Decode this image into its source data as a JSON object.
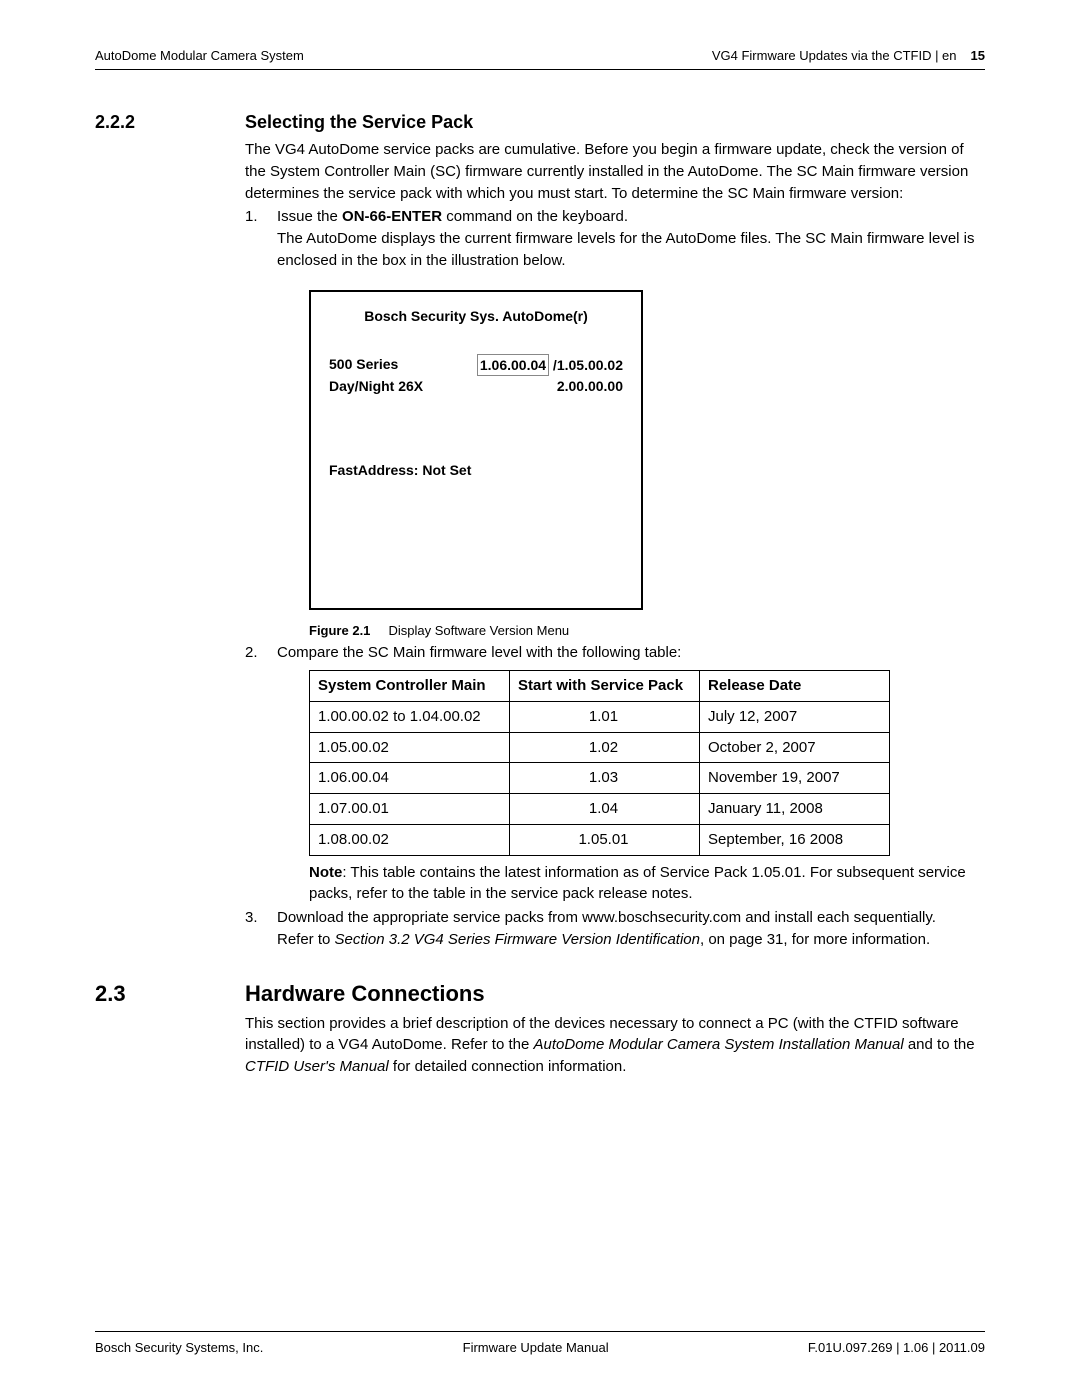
{
  "header": {
    "left": "AutoDome Modular Camera System",
    "right_title": "VG4 Firmware Updates via the CTFID | en",
    "page_number": "15"
  },
  "section_222": {
    "number": "2.2.2",
    "title": "Selecting the Service Pack",
    "intro": "The VG4 AutoDome service packs are cumulative. Before you begin a firmware update, check the version of the System Controller Main (SC) firmware currently installed in the AutoDome. The SC Main firmware version determines the service pack with which you must start. To determine the SC Main firmware version:",
    "step1_pre": "Issue the ",
    "step1_cmd": "ON-66-ENTER",
    "step1_post": " command on the keyboard.",
    "step1_line2": "The AutoDome displays the current firmware levels for the AutoDome files. The SC Main firmware level is enclosed in the box in the illustration below.",
    "display": {
      "title": "Bosch Security Sys. AutoDome(r)",
      "series_label": "500 Series",
      "ver_highlight": "1.06.00.04",
      "ver_sep": " /",
      "ver_right": "1.05.00.02",
      "dn_label": "Day/Night 26X",
      "dn_ver": "2.00.00.00",
      "fastaddr": "FastAddress:  Not Set"
    },
    "figure_label": "Figure  2.1",
    "figure_caption": "Display Software Version Menu",
    "step2": "Compare the SC Main firmware level with the following table:",
    "table": {
      "columns": [
        "System Controller Main",
        "Start with Service Pack",
        "Release Date"
      ],
      "rows": [
        [
          "1.00.00.02 to 1.04.00.02",
          "1.01",
          "July 12, 2007"
        ],
        [
          "1.05.00.02",
          "1.02",
          "October 2, 2007"
        ],
        [
          "1.06.00.04",
          "1.03",
          "November 19, 2007"
        ],
        [
          "1.07.00.01",
          "1.04",
          "January 11, 2008"
        ],
        [
          "1.08.00.02",
          "1.05.01",
          "September, 16 2008"
        ]
      ],
      "col_align": [
        "left",
        "center",
        "left"
      ]
    },
    "note_label": "Note",
    "note_text": ": This table contains the latest information as of Service Pack 1.05.01. For subsequent service packs, refer to the table in the service pack release notes.",
    "step3_a": "Download the appropriate service packs from www.boschsecurity.com and install each sequentially.",
    "step3_b_pre": "Refer to ",
    "step3_b_italic": "Section 3.2 VG4 Series Firmware Version Identification",
    "step3_b_post": ", on page 31, for more information."
  },
  "section_23": {
    "number": "2.3",
    "title": "Hardware Connections",
    "p_pre": "This section provides a brief description of the devices necessary to connect a PC (with the CTFID software installed) to a VG4 AutoDome. Refer to the ",
    "p_i1": "AutoDome Modular Camera System Installation Manual",
    "p_mid": " and to the ",
    "p_i2": "CTFID User's Manual",
    "p_post": " for detailed connection information."
  },
  "footer": {
    "left": "Bosch Security Systems, Inc.",
    "center": "Firmware Update Manual",
    "right": "F.01U.097.269 | 1.06 | 2011.09"
  },
  "colors": {
    "text": "#000000",
    "background": "#ffffff",
    "border": "#000000",
    "highlight_border": "#888888"
  }
}
